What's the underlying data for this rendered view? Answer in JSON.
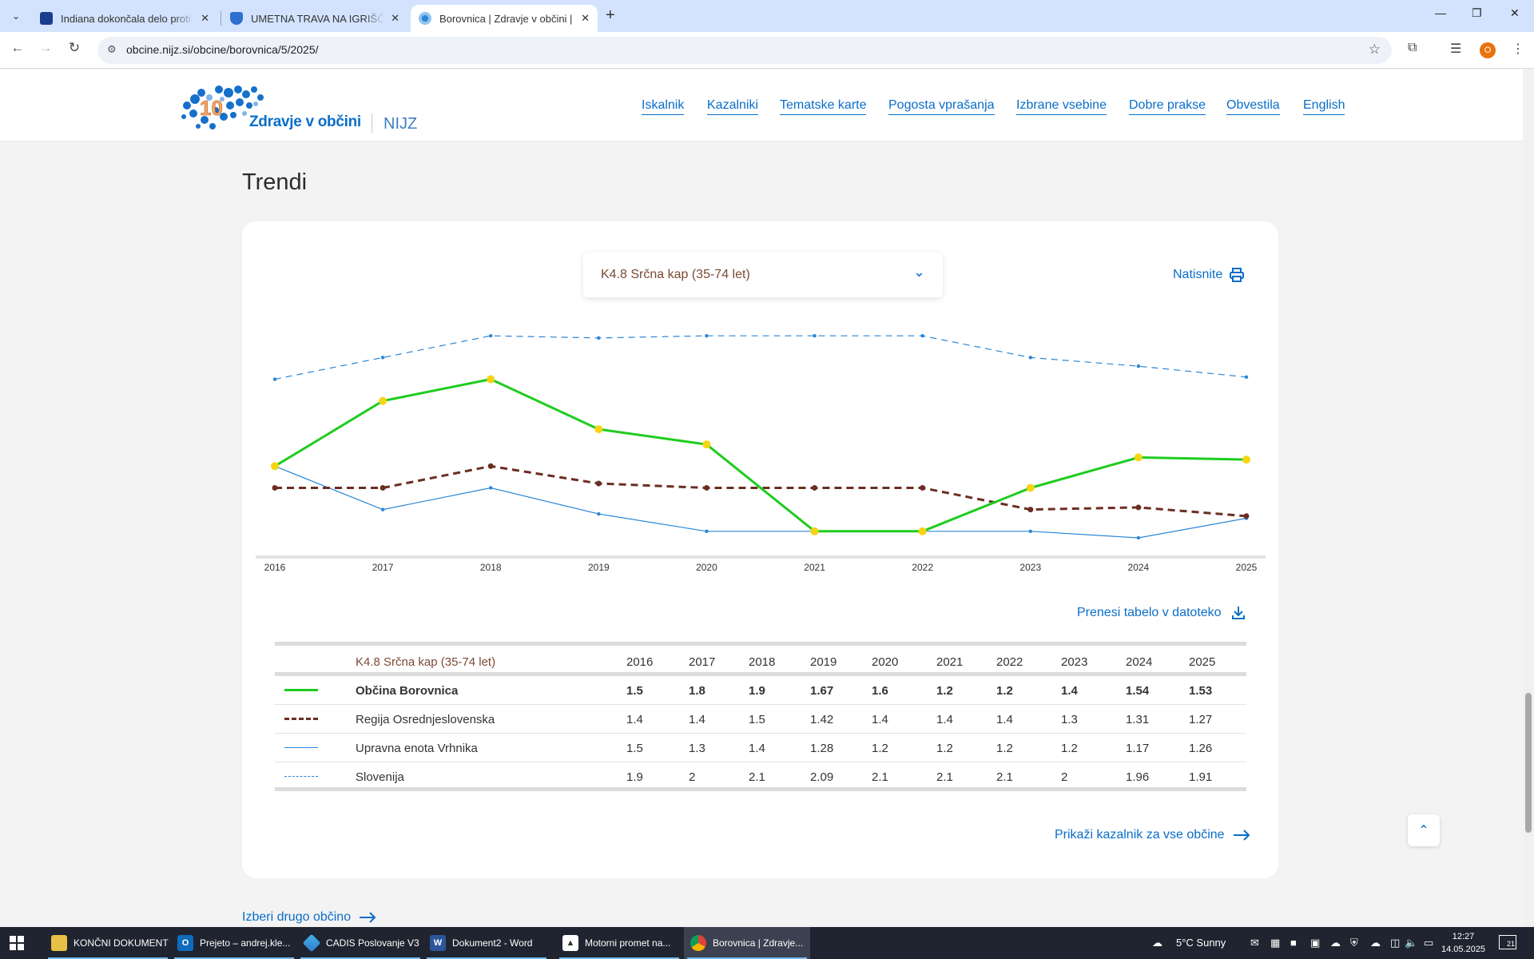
{
  "browser": {
    "tabs": [
      {
        "title": "Indiana dokončala delo proti p...",
        "active": false
      },
      {
        "title": "UMETNA TRAVA NA IGRIŠČU V...",
        "active": false
      },
      {
        "title": "Borovnica | Zdravje v občini | NI...",
        "active": true
      }
    ],
    "url": "obcine.nijz.si/obcine/borovnica/5/2025/",
    "profile_initial": "O"
  },
  "site": {
    "logo_badge": "10",
    "logo_text": "Zdravje v občini",
    "logo_org": "NIJZ",
    "nav": [
      "Iskalnik",
      "Kazalniki",
      "Tematske karte",
      "Pogosta vprašanja",
      "Izbrane vsebine",
      "Dobre prakse",
      "Obvestila",
      "English"
    ]
  },
  "trends": {
    "section_title": "Trendi",
    "indicator_selected": "K4.8 Srčna kap (35-74 let)",
    "print_label": "Natisnite",
    "download_label": "Prenesi tabelo v datoteko",
    "all_municipalities_label": "Prikaži kazalnik za vse občine",
    "other_municipality_label": "Izberi drugo občino"
  },
  "chart_data": {
    "type": "line",
    "title": "K4.8 Srčna kap (35-74 let)",
    "x": [
      "2016",
      "2017",
      "2018",
      "2019",
      "2020",
      "2021",
      "2022",
      "2023",
      "2024",
      "2025"
    ],
    "ylim": [
      1.1,
      2.2
    ],
    "series": [
      {
        "name": "Občina Borovnica",
        "values": [
          1.5,
          1.8,
          1.9,
          1.67,
          1.6,
          1.2,
          1.2,
          1.4,
          1.54,
          1.53
        ],
        "color": "#1fcc1f",
        "style": "solid-thick",
        "marker": "#f5d414"
      },
      {
        "name": "Regija Osrednjeslovenska",
        "values": [
          1.4,
          1.4,
          1.5,
          1.42,
          1.4,
          1.4,
          1.4,
          1.3,
          1.31,
          1.27
        ],
        "color": "#6b2e22",
        "style": "dashed-thick",
        "marker": "#6b2e22"
      },
      {
        "name": "Upravna enota Vrhnika",
        "values": [
          1.5,
          1.3,
          1.4,
          1.28,
          1.2,
          1.2,
          1.2,
          1.2,
          1.17,
          1.26
        ],
        "color": "#2b86d6",
        "style": "solid-thin",
        "marker": "#2b86d6"
      },
      {
        "name": "Slovenija",
        "values": [
          1.9,
          2,
          2.1,
          2.09,
          2.1,
          2.1,
          2.1,
          2,
          1.96,
          1.91
        ],
        "color": "#2b86d6",
        "style": "dashed-thin",
        "marker": "#2b86d6"
      }
    ]
  },
  "table": {
    "indicator": "K4.8 Srčna kap (35-74 let)",
    "years": [
      "2016",
      "2017",
      "2018",
      "2019",
      "2020",
      "2021",
      "2022",
      "2023",
      "2024",
      "2025"
    ],
    "rows": [
      {
        "name": "Občina Borovnica",
        "values": [
          "1.5",
          "1.8",
          "1.9",
          "1.67",
          "1.6",
          "1.2",
          "1.2",
          "1.4",
          "1.54",
          "1.53"
        ]
      },
      {
        "name": "Regija Osrednjeslovenska",
        "values": [
          "1.4",
          "1.4",
          "1.5",
          "1.42",
          "1.4",
          "1.4",
          "1.4",
          "1.3",
          "1.31",
          "1.27"
        ]
      },
      {
        "name": "Upravna enota Vrhnika",
        "values": [
          "1.5",
          "1.3",
          "1.4",
          "1.28",
          "1.2",
          "1.2",
          "1.2",
          "1.2",
          "1.17",
          "1.26"
        ]
      },
      {
        "name": "Slovenija",
        "values": [
          "1.9",
          "2",
          "2.1",
          "2.09",
          "2.1",
          "2.1",
          "2.1",
          "2",
          "1.96",
          "1.91"
        ]
      }
    ]
  },
  "taskbar": {
    "apps": [
      {
        "label": "KONČNI DOKUMENT",
        "icon": "folder-icon"
      },
      {
        "label": "Prejeto – andrej.kle...",
        "icon": "outlook-icon"
      },
      {
        "label": "CADIS Poslovanje V3",
        "icon": "cadis-icon"
      },
      {
        "label": "Dokument2 - Word",
        "icon": "word-icon"
      },
      {
        "label": "Motorni promet na...",
        "icon": "photos-icon"
      },
      {
        "label": "Borovnica | Zdravje...",
        "icon": "chrome-icon"
      }
    ],
    "weather": "5°C  Sunny",
    "time": "12:27",
    "date": "14.05.2025",
    "notifications": "21"
  }
}
